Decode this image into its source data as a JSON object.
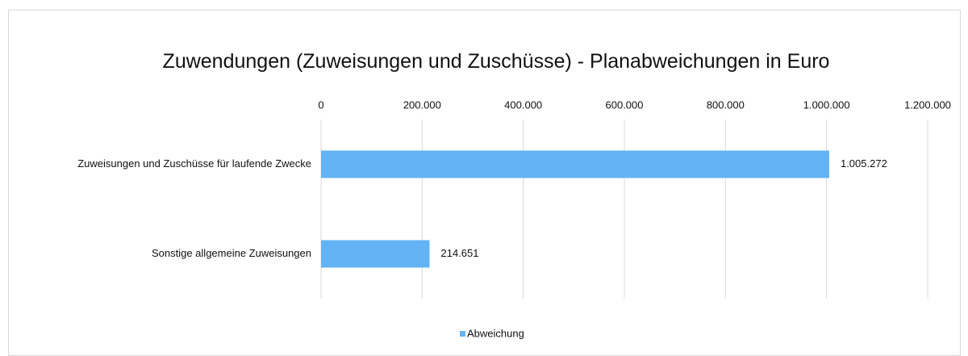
{
  "chart_data": {
    "type": "hbar",
    "title": "Zuwendungen (Zuweisungen und Zuschüsse) - Planabweichungen in Euro",
    "categories": [
      "Zuweisungen und Zuschüsse für laufende Zwecke",
      "Sonstige allgemeine Zuweisungen"
    ],
    "series": [
      {
        "name": "Abweichung",
        "color": "#63b3f4",
        "values": [
          1005272,
          214651
        ],
        "value_labels": [
          "1.005.272",
          "214.651"
        ]
      }
    ],
    "xlim": [
      0,
      1200000
    ],
    "xticks": [
      0,
      {
        "value": 200000,
        "label": "200.000"
      },
      {
        "value": 400000,
        "label": "400.000"
      },
      {
        "value": 600000,
        "label": "600.000"
      },
      {
        "value": 800000,
        "label": "800.000"
      },
      {
        "value": 1000000,
        "label": "1.000.000"
      },
      {
        "value": 1200000,
        "label": "1.200.000"
      }
    ],
    "grid": true,
    "legend": "bottom"
  }
}
